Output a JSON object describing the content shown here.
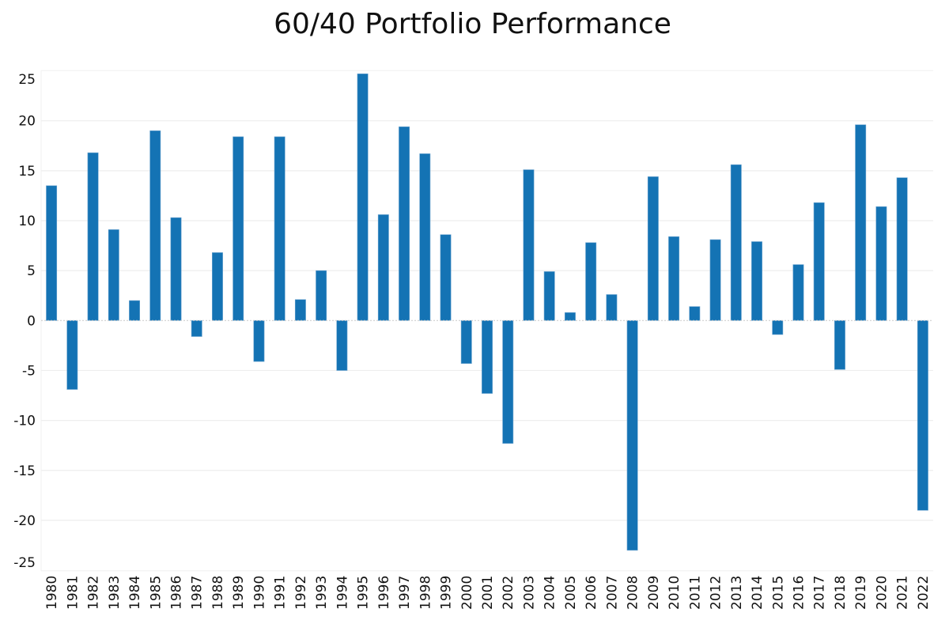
{
  "chart_data": {
    "type": "bar",
    "title": "60/40 Portfolio Performance",
    "xlabel": "",
    "ylabel": "",
    "ylim": [
      -25,
      25
    ],
    "yticks": [
      25,
      20,
      15,
      10,
      5,
      0,
      -5,
      -10,
      -15,
      -20,
      -25
    ],
    "grid": true,
    "bar_color": "#1473b4",
    "categories": [
      "1980",
      "1981",
      "1982",
      "1983",
      "1984",
      "1985",
      "1986",
      "1987",
      "1988",
      "1989",
      "1990",
      "1991",
      "1992",
      "1993",
      "1994",
      "1995",
      "1996",
      "1997",
      "1998",
      "1999",
      "2000",
      "2001",
      "2002",
      "2003",
      "2004",
      "2005",
      "2006",
      "2007",
      "2008",
      "2009",
      "2010",
      "2011",
      "2012",
      "2013",
      "2014",
      "2015",
      "2016",
      "2017",
      "2018",
      "2019",
      "2020",
      "2021",
      "2022"
    ],
    "values": [
      13.5,
      -6.9,
      16.8,
      9.1,
      2.0,
      19.0,
      10.3,
      -1.6,
      6.8,
      18.4,
      -4.1,
      18.4,
      2.1,
      5.0,
      -5.0,
      24.7,
      10.6,
      19.4,
      16.7,
      8.6,
      -4.3,
      -7.3,
      -12.3,
      15.1,
      4.9,
      0.8,
      7.8,
      2.6,
      -23.0,
      14.4,
      8.4,
      1.4,
      8.1,
      15.6,
      7.9,
      -1.4,
      5.6,
      11.8,
      -4.9,
      19.6,
      11.4,
      14.3,
      -19.0
    ]
  }
}
